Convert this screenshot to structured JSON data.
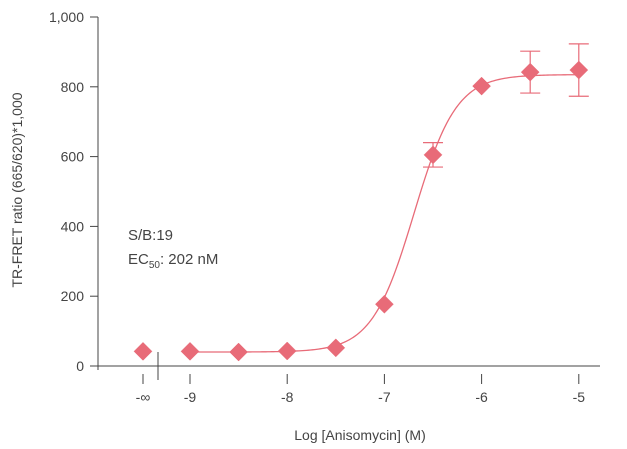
{
  "chart_data": {
    "type": "scatter",
    "title": "",
    "xlabel": "Log [Anisomycin] (M)",
    "ylabel": "TR-FRET ratio (665/620)*1,000",
    "xlim": [
      -9.6,
      -4.5
    ],
    "ylim": [
      0,
      1000
    ],
    "x_ticks": [
      {
        "value": "neg_inf",
        "label": "-∞"
      },
      {
        "value": -9,
        "label": "-9"
      },
      {
        "value": -8,
        "label": "-8"
      },
      {
        "value": -7,
        "label": "-7"
      },
      {
        "value": -6,
        "label": "-6"
      },
      {
        "value": -5,
        "label": "-5"
      }
    ],
    "y_ticks": [
      {
        "value": 0,
        "label": "0"
      },
      {
        "value": 200,
        "label": "200"
      },
      {
        "value": 400,
        "label": "400"
      },
      {
        "value": 600,
        "label": "600"
      },
      {
        "value": 800,
        "label": "800"
      },
      {
        "value": 1000,
        "label": "1,000"
      }
    ],
    "series": [
      {
        "marker": "diamond",
        "color": "#e86b78",
        "points": [
          {
            "x": "neg_inf",
            "y": 42
          },
          {
            "x": -9,
            "y": 42
          },
          {
            "x": -8.5,
            "y": 40
          },
          {
            "x": -8,
            "y": 43
          },
          {
            "x": -7.5,
            "y": 52
          },
          {
            "x": -7,
            "y": 177
          },
          {
            "x": -6.5,
            "y": 605,
            "err": 35
          },
          {
            "x": -6,
            "y": 802
          },
          {
            "x": -5.5,
            "y": 842,
            "err": 60
          },
          {
            "x": -5,
            "y": 848,
            "err": 75
          }
        ]
      }
    ],
    "fit": {
      "model": "4PL",
      "bottom": 40,
      "top": 835,
      "log_ec50": -6.695,
      "hill": 2.0,
      "x_range": [
        -9,
        -5
      ],
      "color": "#e86b78"
    },
    "annotations": {
      "sb": "S/B:19",
      "ec_prefix": "EC",
      "ec_sub": "50",
      "ec_value": ": 202 nM"
    },
    "colors": {
      "accent": "#e86b78",
      "axis": "#444444"
    }
  }
}
